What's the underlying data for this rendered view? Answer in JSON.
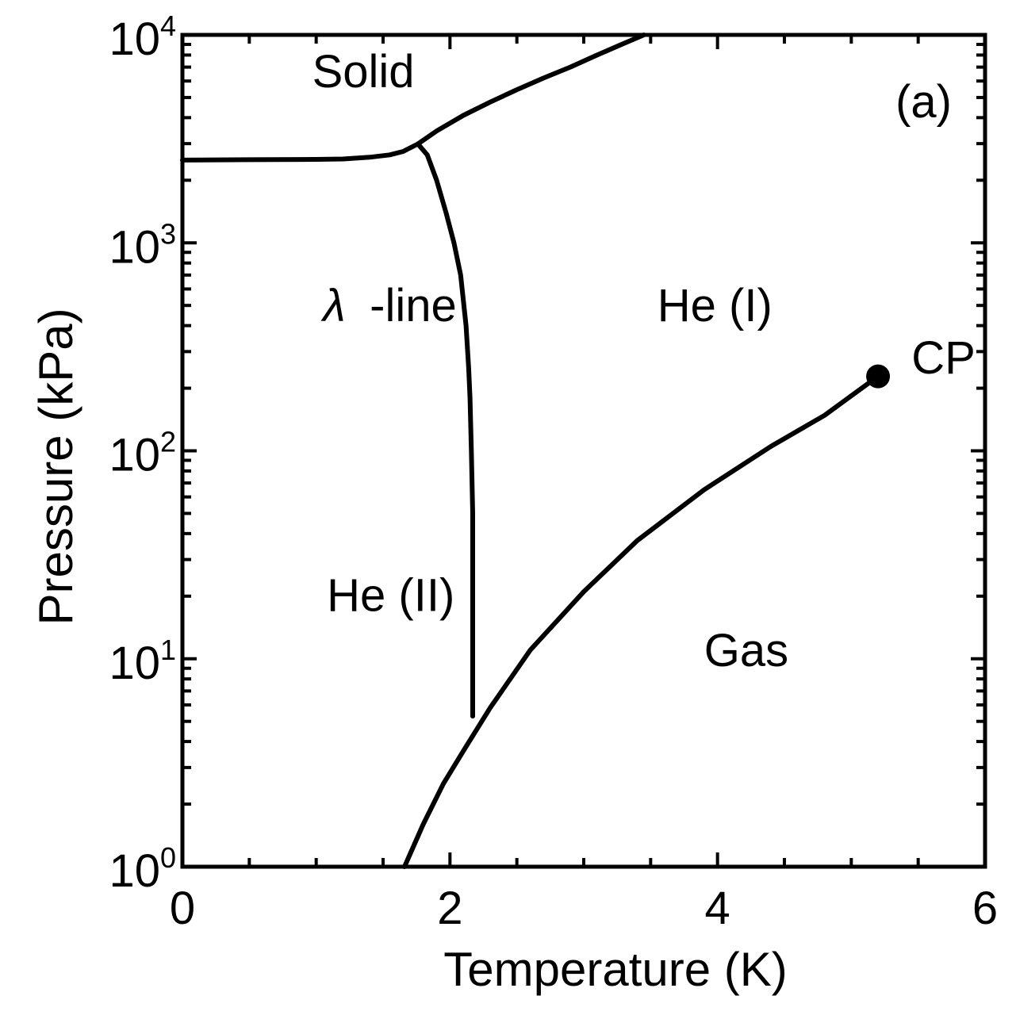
{
  "chart_data": {
    "type": "line",
    "panel_label": "(a)",
    "xlabel": "Temperature (K)",
    "ylabel": "Pressure (kPa)",
    "xlim": [
      0,
      6
    ],
    "ylim": [
      1,
      10000
    ],
    "yscale": "log",
    "x_ticks": [
      {
        "value": 0,
        "label": "0"
      },
      {
        "value": 2,
        "label": "2"
      },
      {
        "value": 4,
        "label": "4"
      },
      {
        "value": 6,
        "label": "6"
      }
    ],
    "y_ticks": [
      {
        "value": 1,
        "base": "10",
        "exp": "0"
      },
      {
        "value": 10,
        "base": "10",
        "exp": "1"
      },
      {
        "value": 100,
        "base": "10",
        "exp": "2"
      },
      {
        "value": 1000,
        "base": "10",
        "exp": "3"
      },
      {
        "value": 10000,
        "base": "10",
        "exp": "4"
      }
    ],
    "grid": false,
    "region_labels": [
      {
        "text": "Solid",
        "x": 0.97,
        "y": 5600
      },
      {
        "text": "λ",
        "x": 1.05,
        "y": 420,
        "italic": true
      },
      {
        "text": "-line",
        "x": 1.4,
        "y": 420
      },
      {
        "text": "He (I)",
        "x": 3.55,
        "y": 420
      },
      {
        "text": "He (II)",
        "x": 1.08,
        "y": 17
      },
      {
        "text": "Gas",
        "x": 3.9,
        "y": 9.2
      },
      {
        "text": "CP",
        "x": 5.45,
        "y": 235
      }
    ],
    "series": [
      {
        "x": [
          0.0,
          0.5,
          1.0,
          1.2,
          1.4,
          1.55,
          1.65,
          1.76
        ],
        "y": [
          2500,
          2510,
          2520,
          2530,
          2580,
          2650,
          2750,
          2990
        ]
      },
      {
        "x": [
          1.76,
          1.9,
          2.1,
          2.3,
          2.5,
          2.7,
          2.9,
          3.1,
          3.3,
          3.45
        ],
        "y": [
          2990,
          3450,
          4100,
          4750,
          5450,
          6200,
          7000,
          8000,
          9100,
          10000
        ]
      },
      {
        "x": [
          1.76,
          1.83,
          1.9,
          1.97,
          2.03,
          2.08,
          2.12,
          2.14,
          2.15,
          2.16,
          2.17,
          2.17,
          2.17
        ],
        "y": [
          2990,
          2650,
          2000,
          1400,
          1000,
          700,
          400,
          250,
          180,
          100,
          50,
          15,
          5.3
        ]
      },
      {
        "x": [
          1.66,
          1.8,
          1.95,
          2.1,
          2.3,
          2.6,
          3.0,
          3.4,
          3.9,
          4.4,
          4.8,
          5.03,
          5.2
        ],
        "y": [
          1.0,
          1.6,
          2.5,
          3.6,
          5.8,
          11,
          21,
          37,
          65,
          105,
          148,
          190,
          228
        ]
      }
    ],
    "critical_point": {
      "label": "CP",
      "x": 5.2,
      "y": 228
    }
  }
}
